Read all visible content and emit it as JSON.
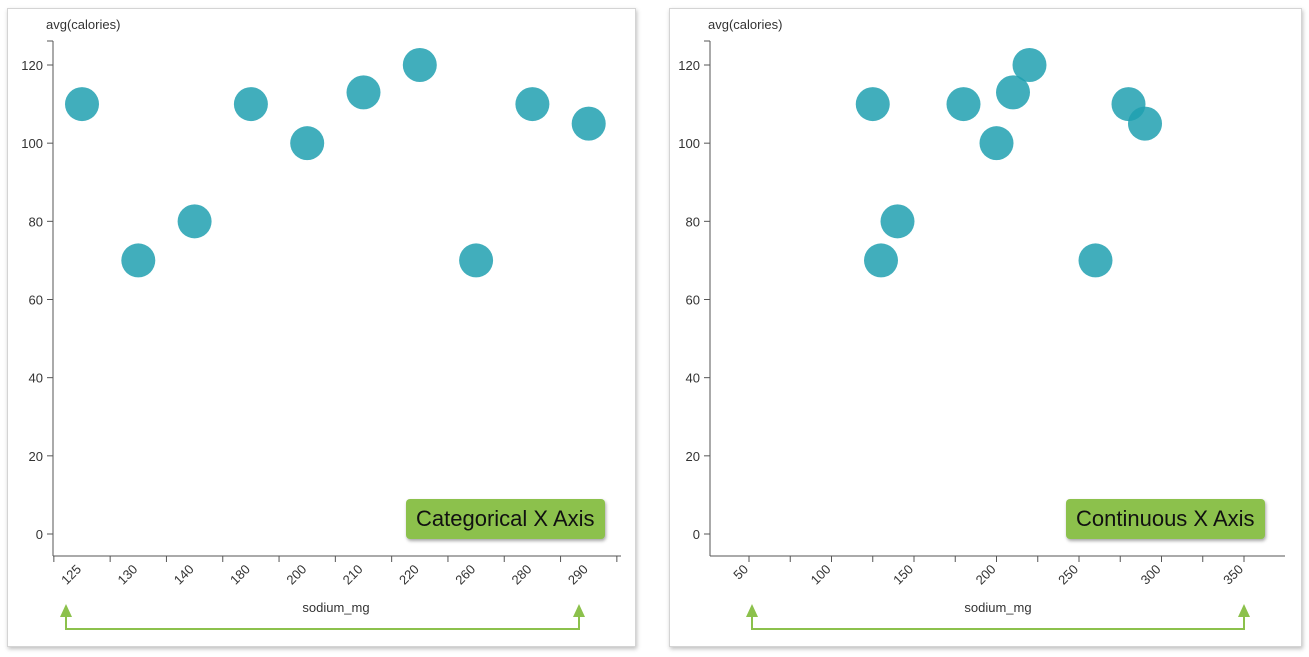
{
  "colors": {
    "point": "#20a0b0",
    "badge": "#8cc14c",
    "arrow": "#8cc14c",
    "axis": "#555555"
  },
  "chart_data": [
    {
      "type": "scatter",
      "x_scale": "categorical",
      "ylabel": "avg(calories)",
      "xlabel": "sodium_mg",
      "badge": "Categorical X Axis",
      "categories": [
        "125",
        "130",
        "140",
        "180",
        "200",
        "210",
        "220",
        "260",
        "280",
        "290"
      ],
      "y_ticks": [
        "0",
        "20",
        "40",
        "60",
        "80",
        "100",
        "120"
      ],
      "ylim": [
        -5,
        125
      ],
      "points": [
        {
          "x": "125",
          "y": 110
        },
        {
          "x": "130",
          "y": 70
        },
        {
          "x": "140",
          "y": 80
        },
        {
          "x": "180",
          "y": 110
        },
        {
          "x": "200",
          "y": 100
        },
        {
          "x": "210",
          "y": 113
        },
        {
          "x": "220",
          "y": 120
        },
        {
          "x": "260",
          "y": 70
        },
        {
          "x": "280",
          "y": 110
        },
        {
          "x": "290",
          "y": 105
        }
      ]
    },
    {
      "type": "scatter",
      "x_scale": "linear",
      "ylabel": "avg(calories)",
      "xlabel": "sodium_mg",
      "badge": "Continuous X Axis",
      "x_ticks": [
        "50",
        "100",
        "150",
        "200",
        "250",
        "300",
        "350"
      ],
      "xlim": [
        30,
        370
      ],
      "y_ticks": [
        "0",
        "20",
        "40",
        "60",
        "80",
        "100",
        "120"
      ],
      "ylim": [
        -5,
        125
      ],
      "points": [
        {
          "x": 125,
          "y": 110
        },
        {
          "x": 130,
          "y": 70
        },
        {
          "x": 140,
          "y": 80
        },
        {
          "x": 180,
          "y": 110
        },
        {
          "x": 200,
          "y": 100
        },
        {
          "x": 210,
          "y": 113
        },
        {
          "x": 220,
          "y": 120
        },
        {
          "x": 260,
          "y": 70
        },
        {
          "x": 280,
          "y": 110
        },
        {
          "x": 290,
          "y": 105
        }
      ]
    }
  ]
}
